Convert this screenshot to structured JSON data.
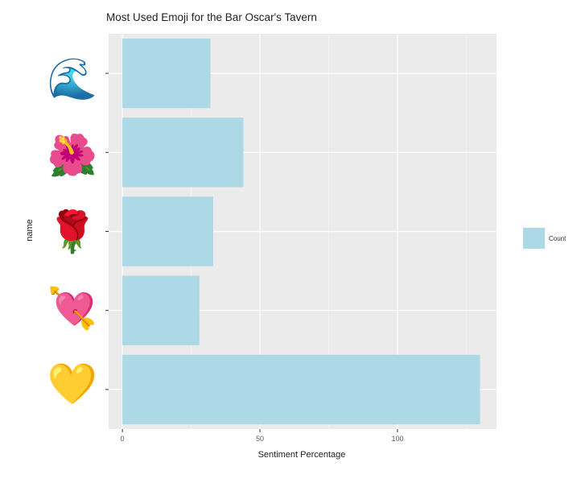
{
  "chart_data": {
    "type": "bar",
    "orientation": "horizontal",
    "title": "Most Used Emoji for the Bar Oscar's Tavern",
    "xlabel": "Sentiment Percentage",
    "ylabel": "name",
    "categories": [
      {
        "emoji": "🌊",
        "icon": "water-wave-emoji"
      },
      {
        "emoji": "🌺",
        "icon": "hibiscus-emoji"
      },
      {
        "emoji": "🌹",
        "icon": "rose-emoji"
      },
      {
        "emoji": "💘",
        "icon": "heart-with-arrow-emoji"
      },
      {
        "emoji": "💛",
        "icon": "yellow-heart-emoji"
      }
    ],
    "series": [
      {
        "name": "Count",
        "values": [
          32,
          44,
          33,
          28,
          130
        ]
      }
    ],
    "xlim": [
      -5,
      136
    ],
    "xticks": [
      0,
      50,
      100
    ],
    "xtick_labels": [
      "0",
      "50",
      "100"
    ],
    "grid": true,
    "legend_position": "right",
    "colors": {
      "bar": "#add8e6",
      "panel": "#ebebeb",
      "grid_major": "#ffffff",
      "grid_minor": "#f4f4f4"
    }
  }
}
